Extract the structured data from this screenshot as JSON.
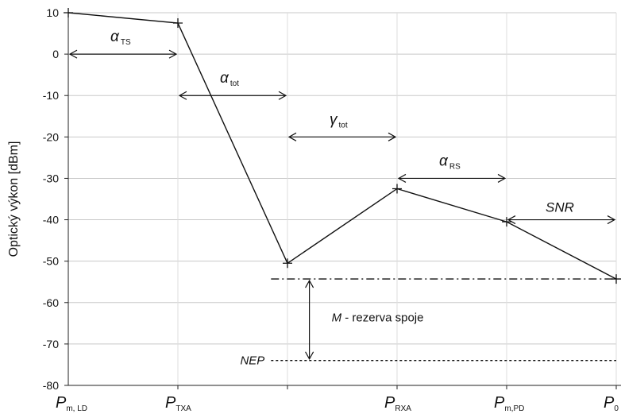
{
  "chart_data": {
    "type": "line",
    "ylabel": "Optický výkon [dBm]",
    "ylim": [
      -80,
      10
    ],
    "yticks": [
      10,
      0,
      -10,
      -20,
      -30,
      -40,
      -50,
      -60,
      -70,
      -80
    ],
    "grid": "horizontal",
    "x_positions": [
      0,
      1,
      2,
      3,
      4,
      5
    ],
    "xticks": [
      {
        "main": "P",
        "sub": "m, LD"
      },
      {
        "main": "P",
        "sub": "TXA"
      },
      {
        "main": "",
        "sub": ""
      },
      {
        "main": "P",
        "sub": "RXA"
      },
      {
        "main": "P",
        "sub": "m,PD"
      },
      {
        "main": "P",
        "sub": "0"
      }
    ],
    "series": [
      {
        "values": [
          10,
          7.5,
          -50.5,
          -32.5,
          -40.5,
          -54.3
        ]
      }
    ],
    "annotations": [
      {
        "main": "α",
        "sub": "TS",
        "arrow": [
          0,
          1
        ],
        "y": 0
      },
      {
        "main": "α",
        "sub": "tot",
        "arrow": [
          1,
          2
        ],
        "y": -10
      },
      {
        "main": "γ",
        "sub": "tot",
        "arrow": [
          2,
          3
        ],
        "y": -20
      },
      {
        "main": "α",
        "sub": "RS",
        "arrow": [
          3,
          4
        ],
        "y": -30
      },
      {
        "main": "SNR",
        "sub": "",
        "arrow": [
          4,
          5
        ],
        "y": -40
      }
    ],
    "level_lines": [
      {
        "name": "",
        "y": -54.3,
        "x_from": 1.85,
        "style": "dash-dot"
      },
      {
        "name": "NEP",
        "y": -74,
        "x_from": 1.85,
        "style": "dotted"
      }
    ],
    "margin_label": {
      "main": "M",
      "rest": " - rezerva spoje"
    }
  }
}
